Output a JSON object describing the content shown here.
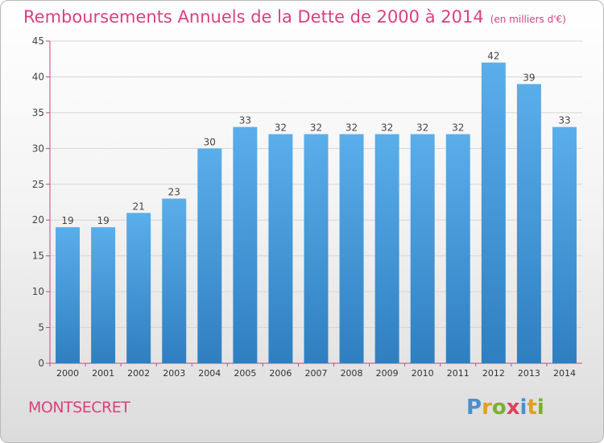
{
  "title": "Remboursements Annuels de la Dette de 2000 à 2014",
  "unit": "(en milliers d'€)",
  "commune": "MONTSECRET",
  "logo": {
    "letters": [
      "P",
      "r",
      "o",
      "x",
      "i",
      "t",
      "i"
    ],
    "colors": [
      "#4a90d0",
      "#e0a020",
      "#7ab030",
      "#e04060",
      "#4a90d0",
      "#e0a020",
      "#7ab030"
    ]
  },
  "colors": {
    "bar_top": "#5aaeea",
    "bar_bottom": "#2f7fc0",
    "title": "#d94080",
    "axis": "#d94080"
  },
  "chart_data": {
    "type": "bar",
    "title": "Remboursements Annuels de la Dette de 2000 à 2014",
    "categories": [
      "2000",
      "2001",
      "2002",
      "2003",
      "2004",
      "2005",
      "2006",
      "2007",
      "2008",
      "2009",
      "2010",
      "2011",
      "2012",
      "2013",
      "2014"
    ],
    "values": [
      19,
      19,
      21,
      23,
      30,
      33,
      32,
      32,
      32,
      32,
      32,
      32,
      42,
      39,
      33
    ],
    "ylim": [
      0,
      45
    ],
    "yticks": [
      0,
      5,
      10,
      15,
      20,
      25,
      30,
      35,
      40,
      45
    ],
    "grid": true
  }
}
